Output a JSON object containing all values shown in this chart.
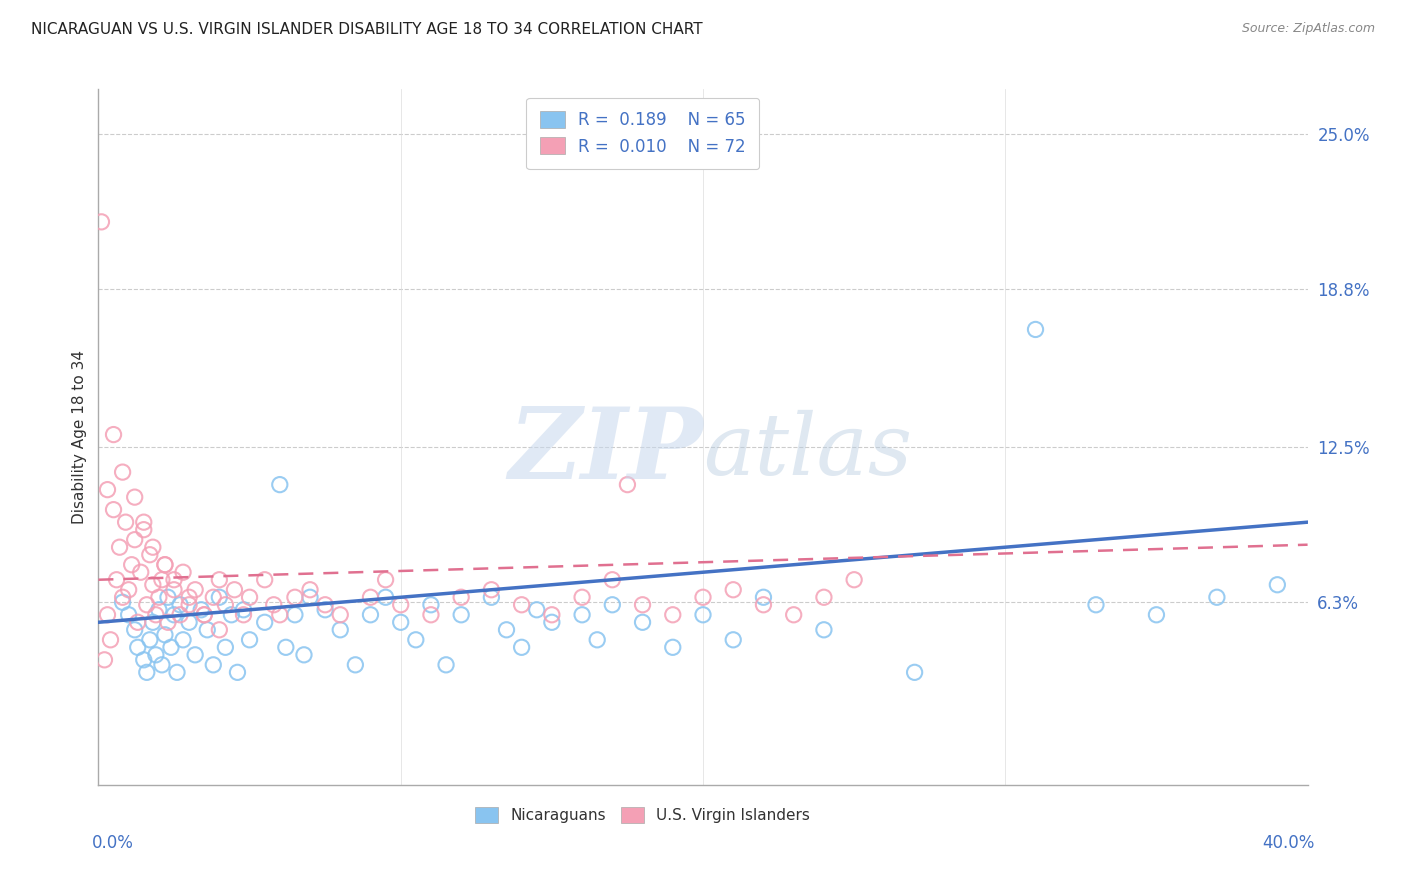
{
  "title": "NICARAGUAN VS U.S. VIRGIN ISLANDER DISABILITY AGE 18 TO 34 CORRELATION CHART",
  "source": "Source: ZipAtlas.com",
  "ylabel": "Disability Age 18 to 34",
  "ytick_labels": [
    "6.3%",
    "12.5%",
    "18.8%",
    "25.0%"
  ],
  "ytick_values": [
    0.063,
    0.125,
    0.188,
    0.25
  ],
  "xlim": [
    0.0,
    0.4
  ],
  "ylim": [
    -0.01,
    0.268
  ],
  "legend1_r": "0.189",
  "legend1_n": "65",
  "legend2_r": "0.010",
  "legend2_n": "72",
  "color_blue": "#89c4f0",
  "color_pink": "#f4a0b5",
  "color_blue_text": "#4472c4",
  "color_pink_text": "#d06080",
  "blue_scatter_x": [
    0.008,
    0.01,
    0.012,
    0.013,
    0.015,
    0.016,
    0.017,
    0.018,
    0.019,
    0.02,
    0.021,
    0.022,
    0.023,
    0.024,
    0.025,
    0.026,
    0.027,
    0.028,
    0.03,
    0.032,
    0.034,
    0.036,
    0.038,
    0.04,
    0.042,
    0.044,
    0.046,
    0.048,
    0.05,
    0.055,
    0.06,
    0.062,
    0.065,
    0.068,
    0.07,
    0.075,
    0.08,
    0.085,
    0.09,
    0.095,
    0.1,
    0.105,
    0.11,
    0.115,
    0.12,
    0.13,
    0.135,
    0.14,
    0.145,
    0.15,
    0.16,
    0.165,
    0.17,
    0.18,
    0.19,
    0.2,
    0.21,
    0.22,
    0.24,
    0.27,
    0.31,
    0.33,
    0.35,
    0.37,
    0.39
  ],
  "blue_scatter_y": [
    0.063,
    0.058,
    0.052,
    0.045,
    0.04,
    0.035,
    0.048,
    0.055,
    0.042,
    0.06,
    0.038,
    0.05,
    0.065,
    0.045,
    0.058,
    0.035,
    0.062,
    0.048,
    0.055,
    0.042,
    0.06,
    0.052,
    0.038,
    0.065,
    0.045,
    0.058,
    0.035,
    0.06,
    0.048,
    0.055,
    0.11,
    0.045,
    0.058,
    0.042,
    0.065,
    0.06,
    0.052,
    0.038,
    0.058,
    0.065,
    0.055,
    0.048,
    0.062,
    0.038,
    0.058,
    0.065,
    0.052,
    0.045,
    0.06,
    0.055,
    0.058,
    0.048,
    0.062,
    0.055,
    0.045,
    0.058,
    0.048,
    0.065,
    0.052,
    0.035,
    0.172,
    0.062,
    0.058,
    0.065,
    0.07
  ],
  "pink_scatter_x": [
    0.001,
    0.002,
    0.003,
    0.004,
    0.005,
    0.006,
    0.007,
    0.008,
    0.009,
    0.01,
    0.011,
    0.012,
    0.013,
    0.014,
    0.015,
    0.016,
    0.017,
    0.018,
    0.019,
    0.02,
    0.021,
    0.022,
    0.023,
    0.025,
    0.027,
    0.028,
    0.03,
    0.032,
    0.035,
    0.038,
    0.04,
    0.042,
    0.045,
    0.048,
    0.05,
    0.055,
    0.058,
    0.06,
    0.065,
    0.07,
    0.075,
    0.08,
    0.09,
    0.095,
    0.1,
    0.11,
    0.12,
    0.13,
    0.14,
    0.15,
    0.16,
    0.17,
    0.18,
    0.19,
    0.2,
    0.21,
    0.22,
    0.23,
    0.24,
    0.25,
    0.003,
    0.005,
    0.008,
    0.012,
    0.015,
    0.018,
    0.022,
    0.025,
    0.03,
    0.035,
    0.04,
    0.175
  ],
  "pink_scatter_y": [
    0.215,
    0.04,
    0.058,
    0.048,
    0.1,
    0.072,
    0.085,
    0.065,
    0.095,
    0.068,
    0.078,
    0.088,
    0.055,
    0.075,
    0.092,
    0.062,
    0.082,
    0.07,
    0.058,
    0.065,
    0.072,
    0.078,
    0.055,
    0.068,
    0.058,
    0.075,
    0.062,
    0.068,
    0.058,
    0.065,
    0.072,
    0.062,
    0.068,
    0.058,
    0.065,
    0.072,
    0.062,
    0.058,
    0.065,
    0.068,
    0.062,
    0.058,
    0.065,
    0.072,
    0.062,
    0.058,
    0.065,
    0.068,
    0.062,
    0.058,
    0.065,
    0.072,
    0.062,
    0.058,
    0.065,
    0.068,
    0.062,
    0.058,
    0.065,
    0.072,
    0.108,
    0.13,
    0.115,
    0.105,
    0.095,
    0.085,
    0.078,
    0.072,
    0.065,
    0.058,
    0.052,
    0.11
  ]
}
